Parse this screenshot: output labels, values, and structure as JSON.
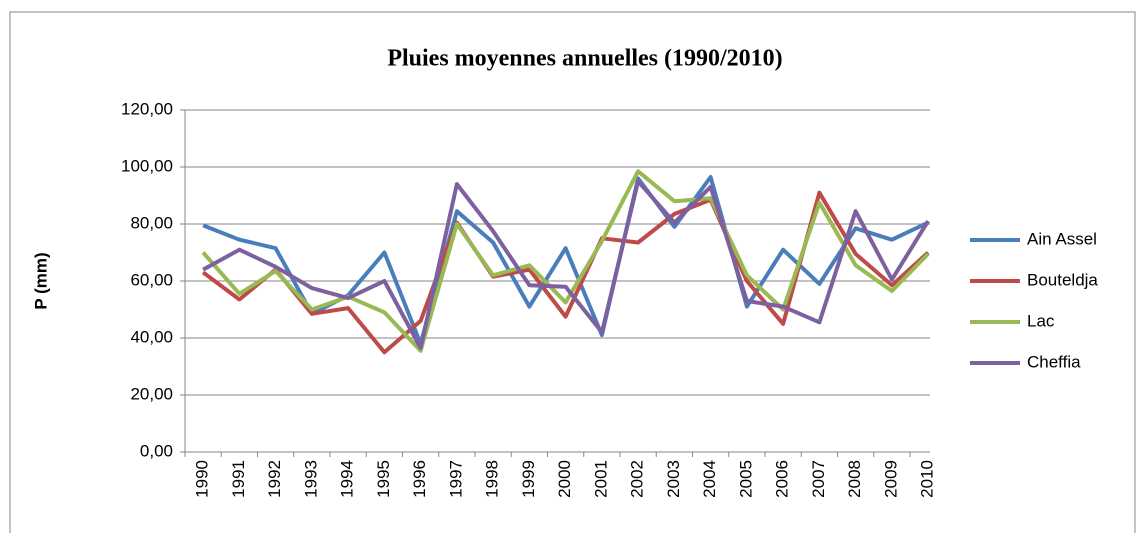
{
  "chart_data": {
    "type": "line",
    "title": "Pluies moyennes annuelles  (1990/2010)",
    "y_label": "P (mm)",
    "categories": [
      "1990",
      "1991",
      "1992",
      "1993",
      "1994",
      "1995",
      "1996",
      "1997",
      "1998",
      "1999",
      "2000",
      "2001",
      "2002",
      "2003",
      "2004",
      "2005",
      "2006",
      "2007",
      "2008",
      "2009",
      "2010"
    ],
    "series": [
      {
        "name": "Ain Assel",
        "color": "#4a7ebb",
        "values": [
          79.5,
          74.5,
          71.5,
          48.5,
          55,
          70,
          38,
          84.5,
          73.5,
          51,
          71.5,
          41,
          96,
          79,
          96.5,
          51,
          71,
          59,
          78.5,
          74.5,
          80.5
        ]
      },
      {
        "name": "Bouteldja",
        "color": "#be4b48",
        "values": [
          63,
          53.5,
          64,
          48.5,
          50.5,
          35,
          46,
          80.5,
          61.5,
          64,
          47.5,
          75,
          73.5,
          83.5,
          88.5,
          60,
          45,
          91,
          69.5,
          58.5,
          70
        ]
      },
      {
        "name": "Lac",
        "color": "#98b954",
        "values": [
          70,
          55.5,
          63.5,
          50,
          54.5,
          49,
          35.5,
          80,
          62,
          65.5,
          52.5,
          74,
          98.5,
          88,
          89,
          62,
          50,
          87.5,
          65.5,
          56.5,
          69.5
        ]
      },
      {
        "name": "Cheffia",
        "color": "#7d60a0",
        "values": [
          64,
          71,
          65,
          57.5,
          54,
          60,
          36.5,
          94,
          77.5,
          58.5,
          58,
          42,
          95,
          80.5,
          93,
          53,
          51,
          45.5,
          84.5,
          60.5,
          81
        ]
      }
    ],
    "ylim": [
      0,
      120
    ],
    "yticks": [
      {
        "value": 0,
        "label": "0,00"
      },
      {
        "value": 20,
        "label": "20,00"
      },
      {
        "value": 40,
        "label": "40,00"
      },
      {
        "value": 60,
        "label": "60,00"
      },
      {
        "value": 80,
        "label": "80,00"
      },
      {
        "value": 100,
        "label": "100,00"
      },
      {
        "value": 120,
        "label": "120,00"
      }
    ],
    "grid": true,
    "legend": "right"
  }
}
